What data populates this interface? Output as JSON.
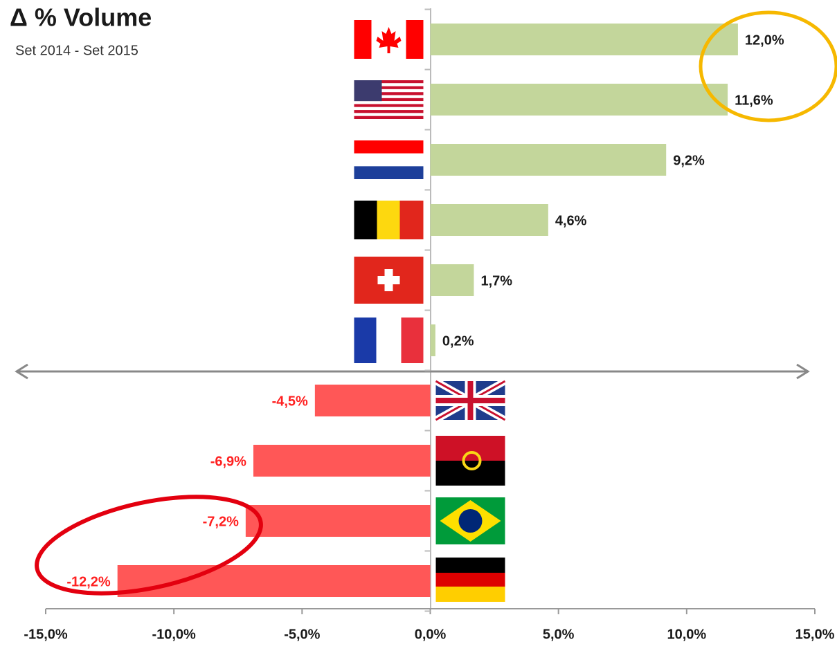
{
  "chart_data": {
    "type": "bar",
    "orientation": "horizontal",
    "title": "Δ % Volume",
    "subtitle": "Set 2014 - Set 2015",
    "values": [
      12.0,
      11.6,
      9.2,
      4.6,
      1.7,
      0.2,
      -4.5,
      -6.9,
      -7.2,
      -12.2
    ],
    "value_labels": [
      "12,0%",
      "11,6%",
      "9,2%",
      "4,6%",
      "1,7%",
      "0,2%",
      "-4,5%",
      "-6,9%",
      "-7,2%",
      "-12,2%"
    ],
    "color_positive": "#c3d69b",
    "color_negative": "#ff5757",
    "xlim": [
      -15,
      15
    ],
    "xticks": [
      {
        "value": -15,
        "label": "-15,0%"
      },
      {
        "value": -10,
        "label": "-10,0%"
      },
      {
        "value": -5,
        "label": "-5,0%"
      },
      {
        "value": 0,
        "label": "0,0%"
      },
      {
        "value": 5,
        "label": "5,0%"
      },
      {
        "value": 10,
        "label": "10,0%"
      },
      {
        "value": 15,
        "label": "15,0%"
      }
    ]
  }
}
